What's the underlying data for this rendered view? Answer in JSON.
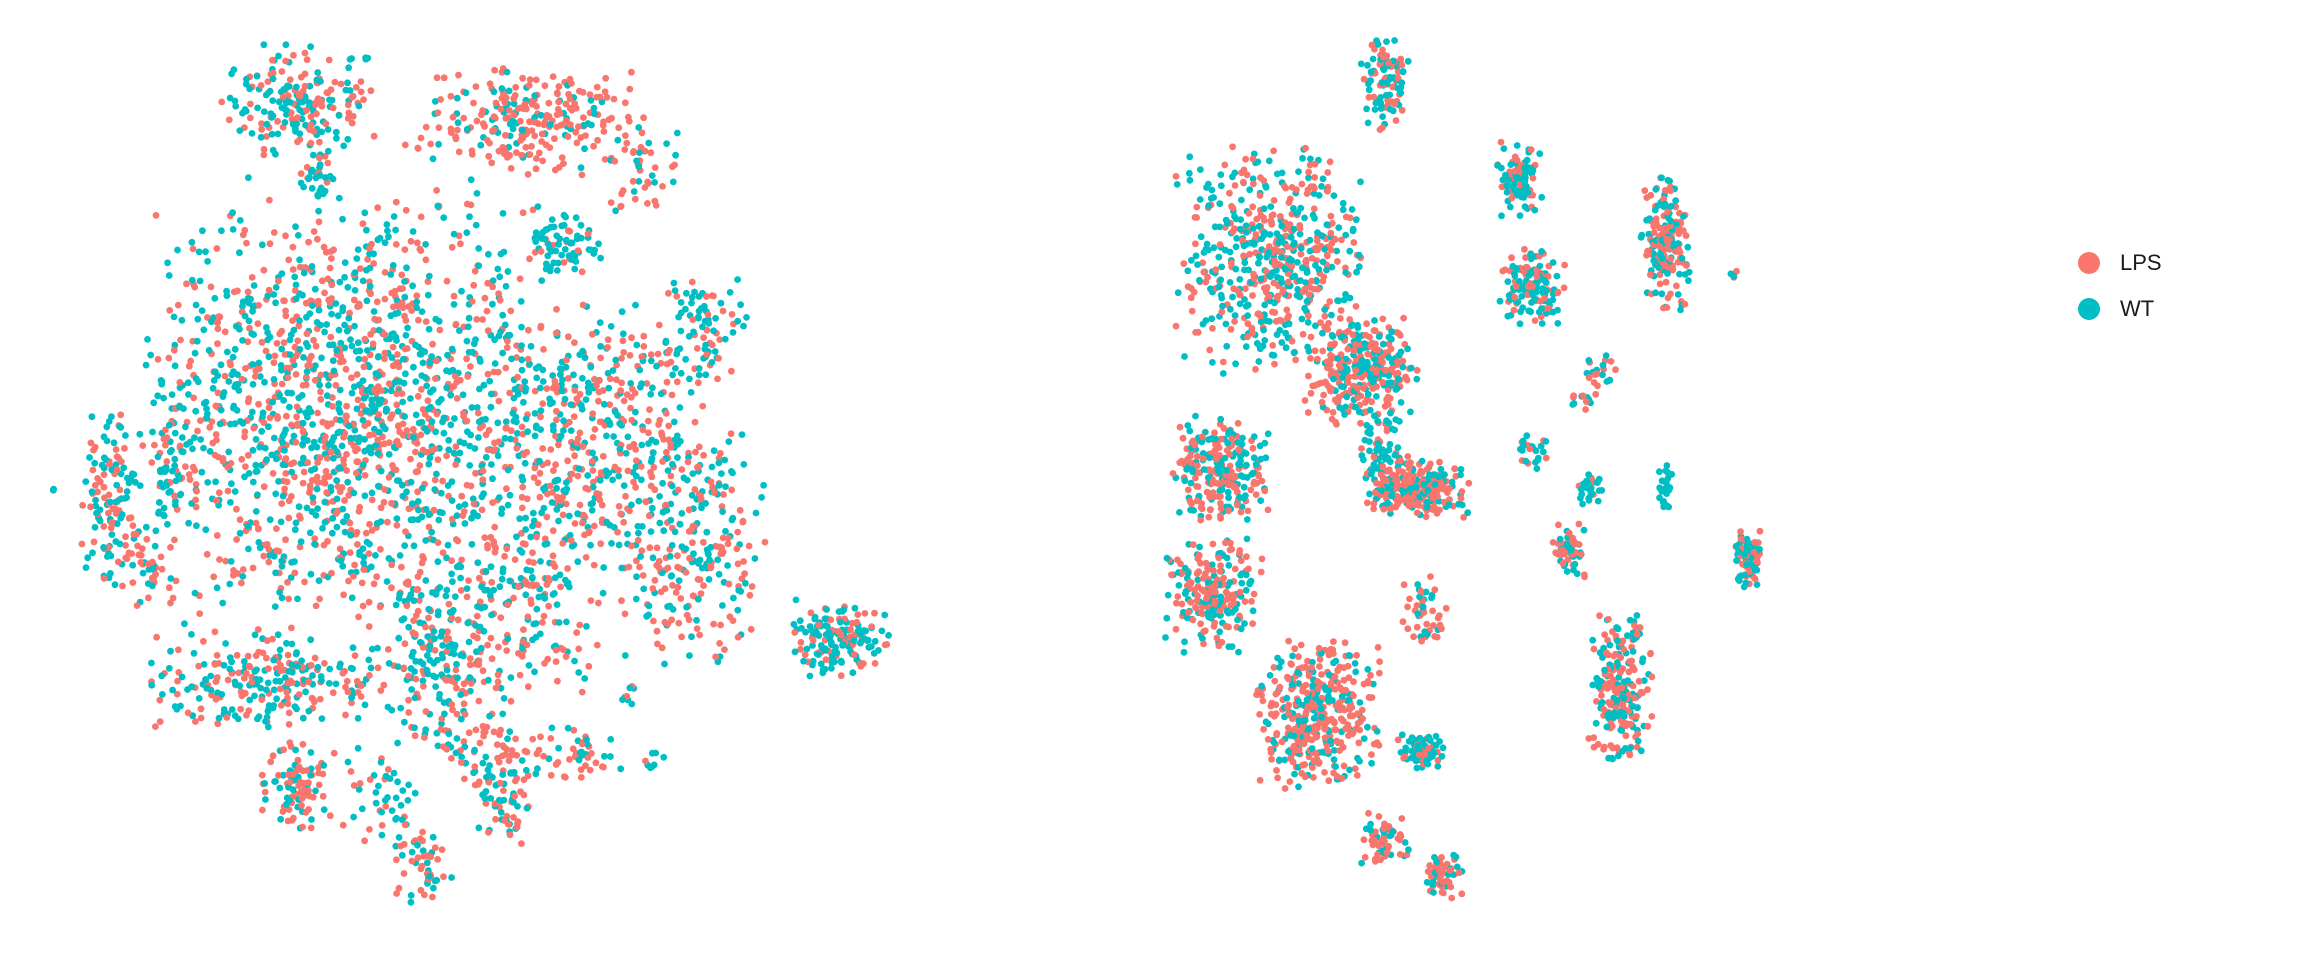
{
  "chart_data": [
    {
      "type": "scatter",
      "title": "",
      "xlabel": "",
      "ylabel": "",
      "grid": false,
      "axes_visible": false,
      "xlim": [
        0,
        100
      ],
      "ylim": [
        0,
        100
      ],
      "point_count_approx": 6000,
      "series": [
        {
          "name": "LPS",
          "color": "#F8766D"
        },
        {
          "name": "WT",
          "color": "#00BFC4"
        }
      ],
      "clusters": [
        {
          "x": 35,
          "y": 58,
          "sx": 11,
          "sy": 12,
          "n": 1500,
          "red_frac": 0.5
        },
        {
          "x": 8,
          "y": 48,
          "sx": 1.5,
          "sy": 4.5,
          "n": 120,
          "red_frac": 0.45
        },
        {
          "x": 15,
          "y": 53,
          "sx": 1.2,
          "sy": 4,
          "n": 60,
          "red_frac": 0.4
        },
        {
          "x": 12,
          "y": 41,
          "sx": 1.5,
          "sy": 3,
          "n": 40,
          "red_frac": 0.7
        },
        {
          "x": 29,
          "y": 93,
          "sx": 4,
          "sy": 3,
          "n": 200,
          "red_frac": 0.5
        },
        {
          "x": 55,
          "y": 91,
          "sx": 6,
          "sy": 3,
          "n": 260,
          "red_frac": 0.75
        },
        {
          "x": 68,
          "y": 85,
          "sx": 2,
          "sy": 2.5,
          "n": 40,
          "red_frac": 0.7
        },
        {
          "x": 59,
          "y": 77,
          "sx": 2,
          "sy": 2,
          "n": 70,
          "red_frac": 0.15
        },
        {
          "x": 31,
          "y": 84,
          "sx": 1,
          "sy": 1.5,
          "n": 25,
          "red_frac": 0.2
        },
        {
          "x": 62,
          "y": 55,
          "sx": 6,
          "sy": 7,
          "n": 420,
          "red_frac": 0.5
        },
        {
          "x": 74,
          "y": 67,
          "sx": 2.5,
          "sy": 3,
          "n": 80,
          "red_frac": 0.45
        },
        {
          "x": 73,
          "y": 43,
          "sx": 4,
          "sy": 7,
          "n": 260,
          "red_frac": 0.5
        },
        {
          "x": 55,
          "y": 36,
          "sx": 4,
          "sy": 6,
          "n": 180,
          "red_frac": 0.5
        },
        {
          "x": 45,
          "y": 30,
          "sx": 3,
          "sy": 5,
          "n": 200,
          "red_frac": 0.45
        },
        {
          "x": 26,
          "y": 27,
          "sx": 7,
          "sy": 2.5,
          "n": 250,
          "red_frac": 0.45
        },
        {
          "x": 29,
          "y": 15,
          "sx": 2,
          "sy": 2.5,
          "n": 90,
          "red_frac": 0.55
        },
        {
          "x": 38,
          "y": 15,
          "sx": 2,
          "sy": 3,
          "n": 40,
          "red_frac": 0.3
        },
        {
          "x": 52,
          "y": 16,
          "sx": 2,
          "sy": 3.5,
          "n": 100,
          "red_frac": 0.6
        },
        {
          "x": 60,
          "y": 19,
          "sx": 3,
          "sy": 1.5,
          "n": 50,
          "red_frac": 0.65
        },
        {
          "x": 43,
          "y": 7,
          "sx": 1.5,
          "sy": 2.5,
          "n": 55,
          "red_frac": 0.6
        },
        {
          "x": 47,
          "y": 19,
          "sx": 1.5,
          "sy": 1,
          "n": 15,
          "red_frac": 0.5
        },
        {
          "x": 66,
          "y": 26,
          "sx": 0.5,
          "sy": 1,
          "n": 8,
          "red_frac": 0.2
        },
        {
          "x": 69,
          "y": 18,
          "sx": 0.5,
          "sy": 1,
          "n": 8,
          "red_frac": 0.3
        },
        {
          "x": 90,
          "y": 32,
          "sx": 2.5,
          "sy": 2,
          "n": 160,
          "red_frac": 0.3
        },
        {
          "x": 2,
          "y": 49,
          "sx": 0.3,
          "sy": 0.3,
          "n": 2,
          "red_frac": 0.3
        },
        {
          "x": 75,
          "y": 42,
          "sx": 1,
          "sy": 1,
          "n": 6,
          "red_frac": 0.6
        }
      ]
    },
    {
      "type": "scatter",
      "title": "",
      "xlabel": "",
      "ylabel": "",
      "grid": false,
      "axes_visible": false,
      "xlim": [
        0,
        100
      ],
      "ylim": [
        0,
        100
      ],
      "point_count_approx": 4500,
      "series": [
        {
          "name": "LPS",
          "color": "#F8766D"
        },
        {
          "name": "WT",
          "color": "#00BFC4"
        }
      ],
      "clusters": [
        {
          "x": 18,
          "y": 75,
          "sx": 6,
          "sy": 6,
          "n": 550,
          "red_frac": 0.5
        },
        {
          "x": 30,
          "y": 62,
          "sx": 3.5,
          "sy": 3,
          "n": 300,
          "red_frac": 0.6
        },
        {
          "x": 11,
          "y": 51,
          "sx": 3,
          "sy": 3,
          "n": 250,
          "red_frac": 0.45
        },
        {
          "x": 10,
          "y": 37,
          "sx": 3,
          "sy": 3,
          "n": 220,
          "red_frac": 0.5
        },
        {
          "x": 33,
          "y": 52,
          "sx": 1.5,
          "sy": 2.5,
          "n": 90,
          "red_frac": 0.2
        },
        {
          "x": 24,
          "y": 23,
          "sx": 4,
          "sy": 4,
          "n": 400,
          "red_frac": 0.65
        },
        {
          "x": 33,
          "y": 95,
          "sx": 1.5,
          "sy": 2.5,
          "n": 100,
          "red_frac": 0.45
        },
        {
          "x": 51,
          "y": 84,
          "sx": 1.5,
          "sy": 2,
          "n": 100,
          "red_frac": 0.4
        },
        {
          "x": 53,
          "y": 72,
          "sx": 2,
          "sy": 2,
          "n": 130,
          "red_frac": 0.35
        },
        {
          "x": 71,
          "y": 77,
          "sx": 1.5,
          "sy": 3.5,
          "n": 180,
          "red_frac": 0.6
        },
        {
          "x": 38,
          "y": 49,
          "sx": 3,
          "sy": 1.5,
          "n": 220,
          "red_frac": 0.7
        },
        {
          "x": 53,
          "y": 53,
          "sx": 1,
          "sy": 1,
          "n": 25,
          "red_frac": 0.4
        },
        {
          "x": 60,
          "y": 59,
          "sx": 1,
          "sy": 0.5,
          "n": 15,
          "red_frac": 0.5
        },
        {
          "x": 58,
          "y": 42,
          "sx": 1,
          "sy": 1.5,
          "n": 55,
          "red_frac": 0.6
        },
        {
          "x": 61,
          "y": 49,
          "sx": 1,
          "sy": 0.8,
          "n": 30,
          "red_frac": 0.2
        },
        {
          "x": 71,
          "y": 49,
          "sx": 0.4,
          "sy": 1.5,
          "n": 20,
          "red_frac": 0.1
        },
        {
          "x": 38,
          "y": 19,
          "sx": 1.5,
          "sy": 1,
          "n": 80,
          "red_frac": 0.3
        },
        {
          "x": 65,
          "y": 26,
          "sx": 2,
          "sy": 4,
          "n": 220,
          "red_frac": 0.55
        },
        {
          "x": 82,
          "y": 41,
          "sx": 1,
          "sy": 1.5,
          "n": 80,
          "red_frac": 0.6
        },
        {
          "x": 38,
          "y": 35,
          "sx": 1.5,
          "sy": 2,
          "n": 45,
          "red_frac": 0.6
        },
        {
          "x": 33,
          "y": 9,
          "sx": 1.5,
          "sy": 1.5,
          "n": 60,
          "red_frac": 0.6
        },
        {
          "x": 41,
          "y": 5,
          "sx": 1.5,
          "sy": 1.2,
          "n": 55,
          "red_frac": 0.6
        },
        {
          "x": 80,
          "y": 73,
          "sx": 0.4,
          "sy": 0.4,
          "n": 4,
          "red_frac": 0.3
        },
        {
          "x": 62,
          "y": 62,
          "sx": 1.2,
          "sy": 1,
          "n": 20,
          "red_frac": 0.5
        }
      ]
    }
  ],
  "legend": {
    "placement": "right",
    "items": [
      {
        "label": "LPS",
        "color": "#F8766D"
      },
      {
        "label": "WT",
        "color": "#00BFC4"
      }
    ]
  }
}
